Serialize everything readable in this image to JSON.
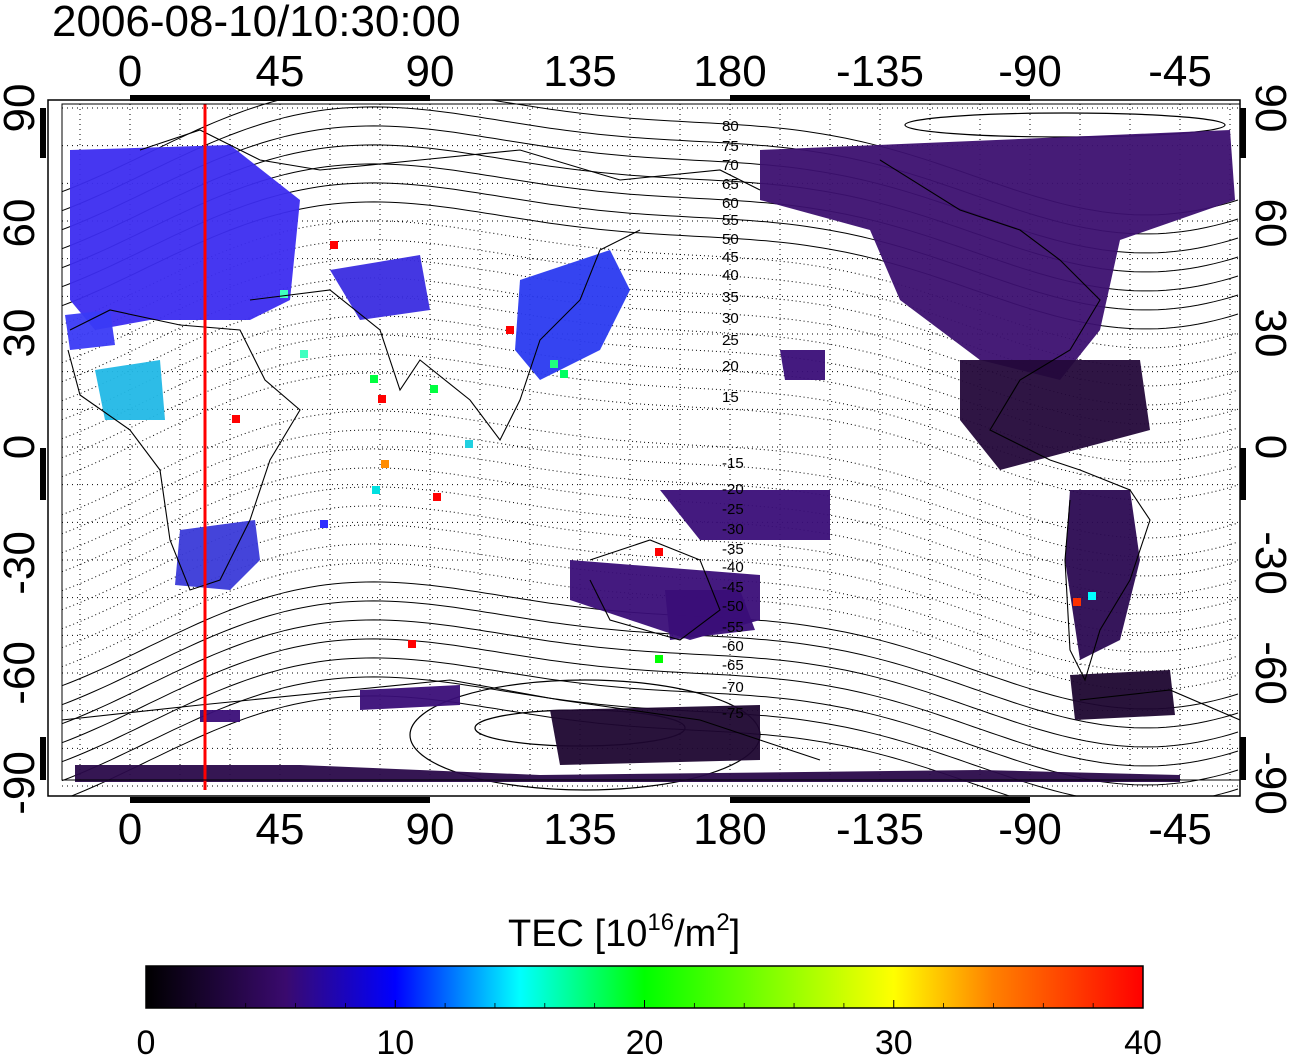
{
  "title": "2006-08-10/10:30:00",
  "map": {
    "top_lon_labels": [
      "0",
      "45",
      "90",
      "135",
      "180",
      "-135",
      "-90",
      "-45"
    ],
    "bottom_lon_labels": [
      "0",
      "45",
      "90",
      "135",
      "180",
      "-135",
      "-90",
      "-45"
    ],
    "left_lat_labels": [
      "90",
      "60",
      "30",
      "0",
      "-30",
      "-60",
      "-90"
    ],
    "right_lat_labels": [
      "90",
      "60",
      "30",
      "0",
      "-30",
      "-60",
      "-90"
    ],
    "contour_labels": [
      "80",
      "75",
      "70",
      "65",
      "60",
      "55",
      "50",
      "45",
      "40",
      "35",
      "30",
      "25",
      "20",
      "15",
      "-15",
      "-20",
      "-25",
      "-30",
      "-35",
      "-40",
      "-45",
      "-50",
      "-55",
      "-60",
      "-65",
      "-70",
      "-75"
    ],
    "marker_longitude": 22.5,
    "marker_color": "#ff0000",
    "grid": "dotted"
  },
  "colorbar": {
    "label_prefix": "TEC  [10",
    "label_sup1": "16",
    "label_mid": "/m",
    "label_sup2": "2",
    "label_suffix": "]",
    "ticks": [
      "0",
      "10",
      "20",
      "30",
      "40"
    ],
    "min": 0,
    "max": 40,
    "colors": [
      "#000000",
      "#3a0a6e",
      "#0000ff",
      "#00ffff",
      "#00ff00",
      "#ffff00",
      "#ff8000",
      "#ff0000"
    ]
  }
}
